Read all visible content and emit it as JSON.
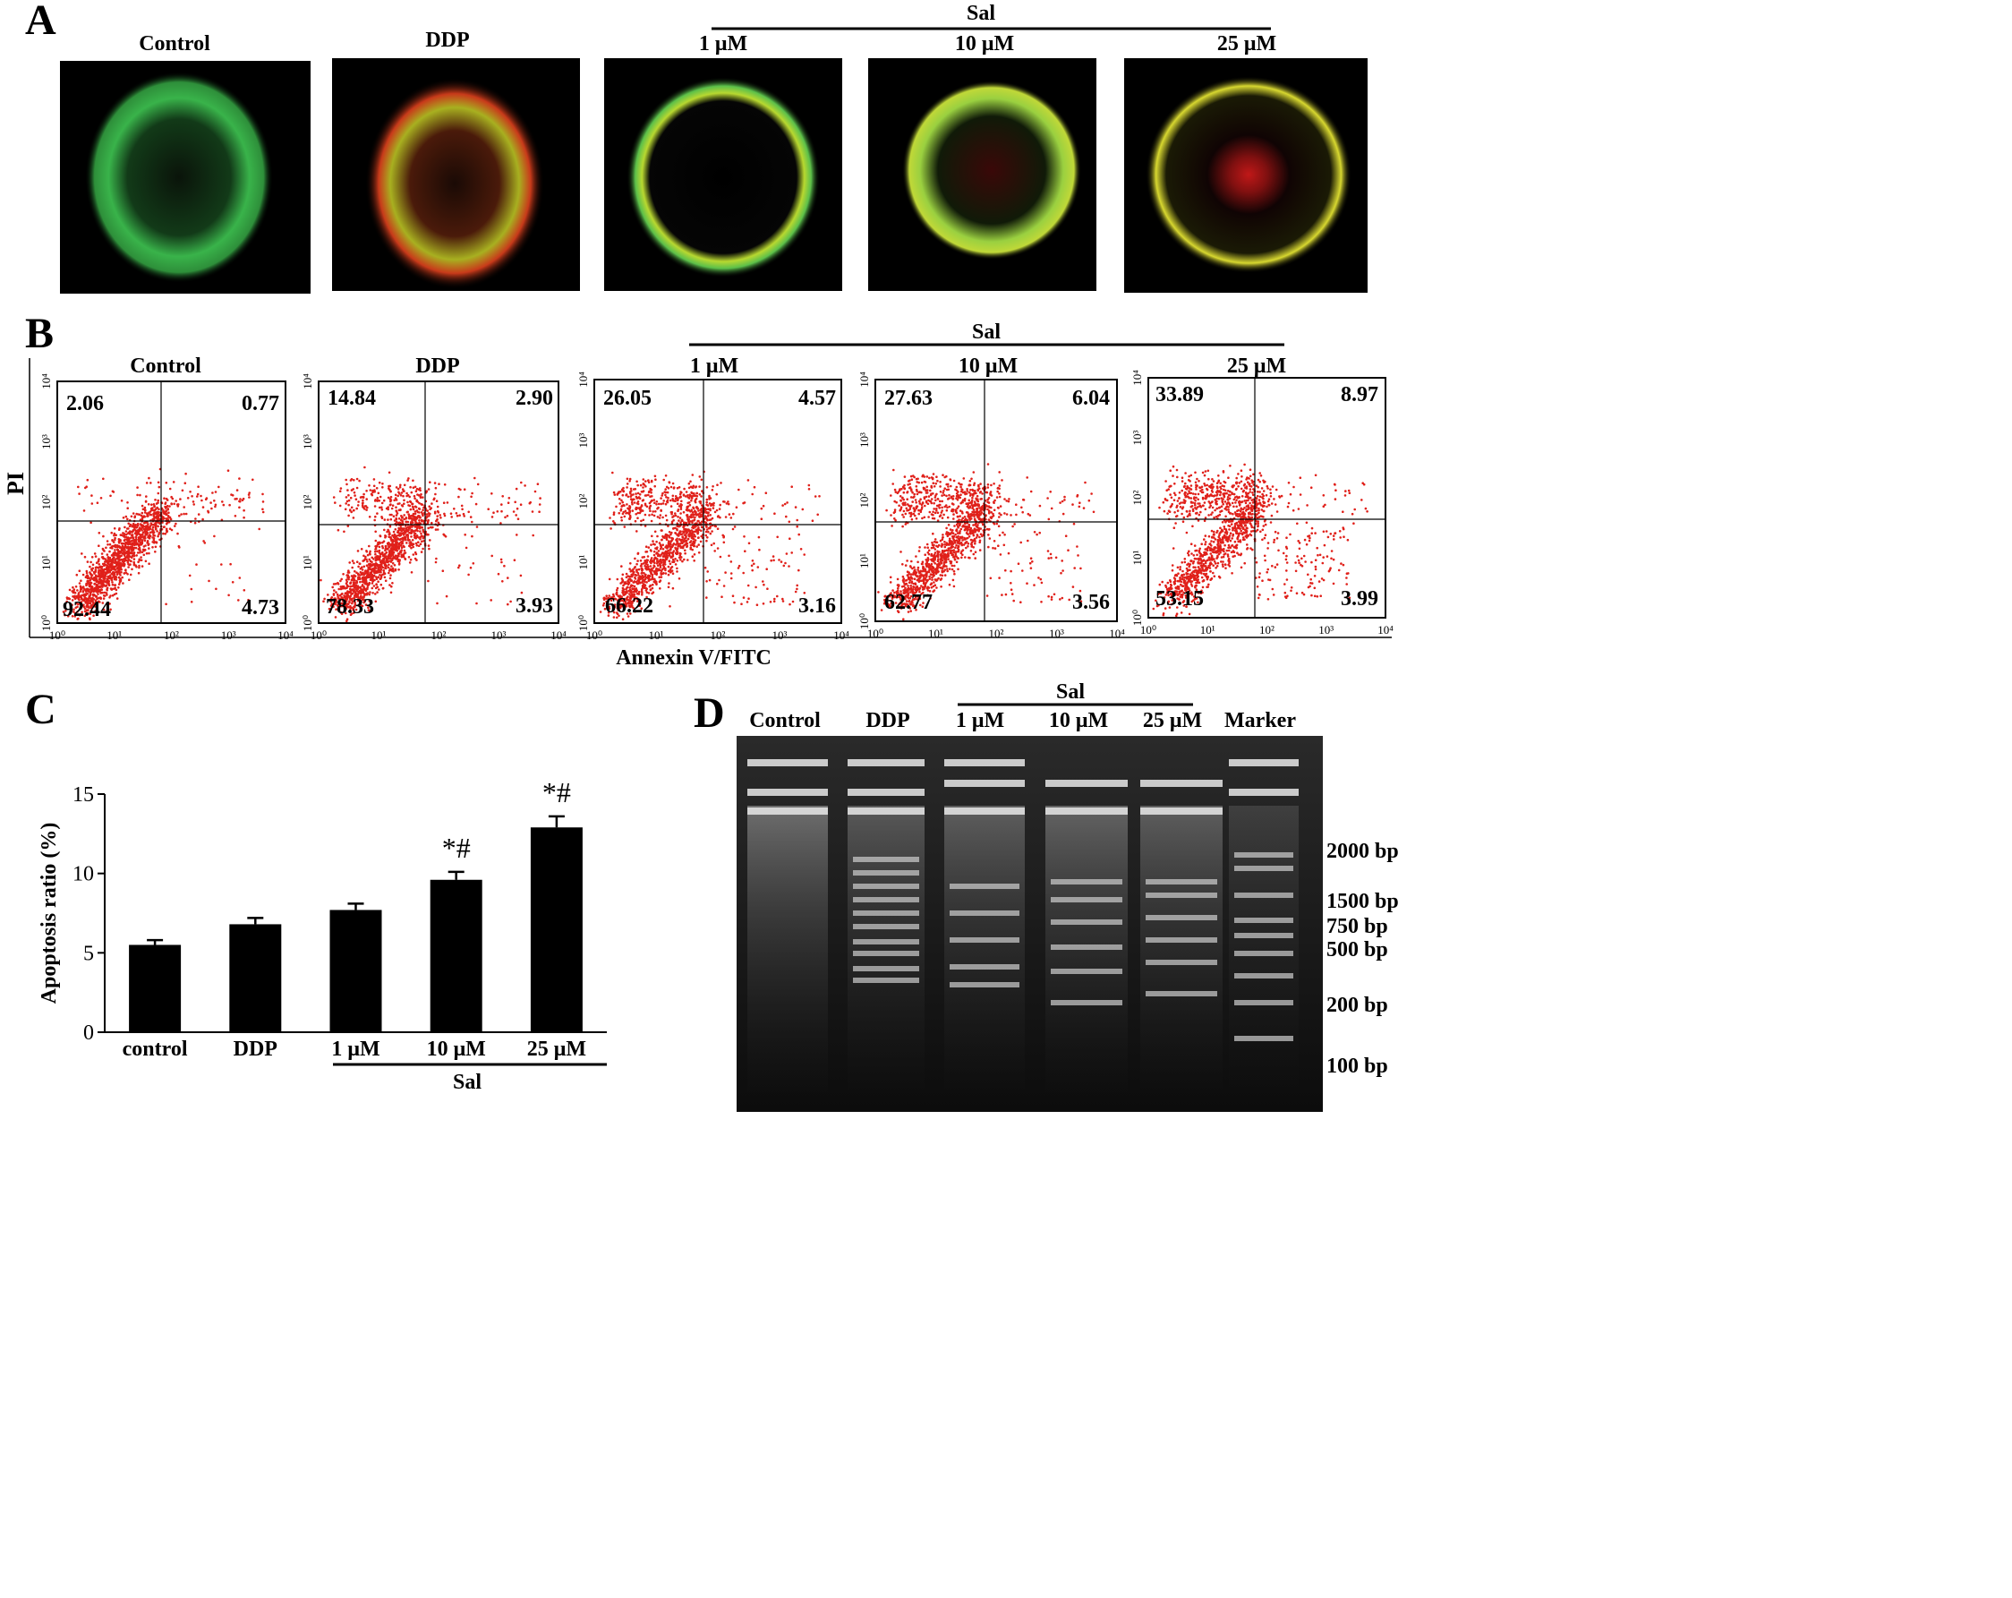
{
  "panel_a": {
    "letter": "A",
    "group_label": "Sal",
    "panels": [
      {
        "label": "Control"
      },
      {
        "label": "DDP"
      },
      {
        "label": "1  μM"
      },
      {
        "label": "10  μM"
      },
      {
        "label": "25  μM"
      }
    ]
  },
  "panel_b": {
    "letter": "B",
    "group_label": "Sal",
    "y_label": "PI",
    "x_label": "Annexin V/FITC",
    "axis_ticks": [
      "10⁰",
      "10¹",
      "10²",
      "10³",
      "10⁴"
    ],
    "plots": [
      {
        "label": "Control",
        "ul": "2.06",
        "ur": "0.77",
        "ll": "92.44",
        "lr": "4.73"
      },
      {
        "label": "DDP",
        "ul": "14.84",
        "ur": "2.90",
        "ll": "78.33",
        "lr": "3.93"
      },
      {
        "label": "1  μM",
        "ul": "26.05",
        "ur": "4.57",
        "ll": "66.22",
        "lr": "3.16"
      },
      {
        "label": "10  μM",
        "ul": "27.63",
        "ur": "6.04",
        "ll": "62.77",
        "lr": "3.56"
      },
      {
        "label": "25  μM",
        "ul": "33.89",
        "ur": "8.97",
        "ll": "53.15",
        "lr": "3.99"
      }
    ]
  },
  "panel_c": {
    "letter": "C"
  },
  "chart_data": {
    "type": "bar",
    "categories": [
      "control",
      "DDP",
      "1 μM",
      "10 μM",
      "25 μM"
    ],
    "values": [
      5.5,
      6.8,
      7.7,
      9.6,
      12.9
    ],
    "errors": [
      0.3,
      0.4,
      0.4,
      0.5,
      0.7
    ],
    "annotations": [
      "",
      "",
      "",
      "*#",
      "*#"
    ],
    "ylabel": "Apoptosis ratio (%)",
    "xlabel": "",
    "group_label": "Sal",
    "ylim": [
      0,
      15
    ],
    "yticks": [
      0,
      5,
      10,
      15
    ],
    "bar_color": "#000000",
    "grid": false
  },
  "panel_d": {
    "letter": "D",
    "group_label": "Sal",
    "lanes": [
      "Control",
      "DDP",
      "1  μM",
      "10  μM",
      "25  μM",
      "Marker"
    ],
    "markers": [
      "2000 bp",
      "1500 bp",
      "750 bp",
      "500 bp",
      "200 bp",
      "100 bp"
    ]
  }
}
